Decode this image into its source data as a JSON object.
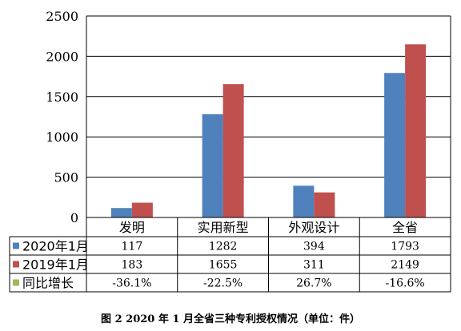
{
  "chart_data": {
    "type": "bar",
    "categories": [
      "发明",
      "实用新型",
      "外观设计",
      "全省"
    ],
    "ylim": [
      0,
      2500
    ],
    "yticks": [
      0,
      500,
      1000,
      1500,
      2000,
      2500
    ],
    "grid": true,
    "series": [
      {
        "name": "2020年1月",
        "color": "#4F81BD",
        "values": [
          117,
          1282,
          394,
          1793
        ]
      },
      {
        "name": "2019年1月",
        "color": "#C0504D",
        "values": [
          183,
          1655,
          311,
          2149
        ]
      }
    ],
    "table_rows": [
      {
        "name": "2020年1月",
        "color": "#4F81BD",
        "cells": [
          "117",
          "1282",
          "394",
          "1793"
        ]
      },
      {
        "name": "2019年1月",
        "color": "#C0504D",
        "cells": [
          "183",
          "1655",
          "311",
          "2149"
        ]
      },
      {
        "name": "同比增长",
        "color": "#9BBB59",
        "cells": [
          "-36.1%",
          "-22.5%",
          "26.7%",
          "-16.6%"
        ]
      }
    ]
  },
  "caption": "图 2 2020 年 1 月全省三种专利授权情况（单位：件）"
}
